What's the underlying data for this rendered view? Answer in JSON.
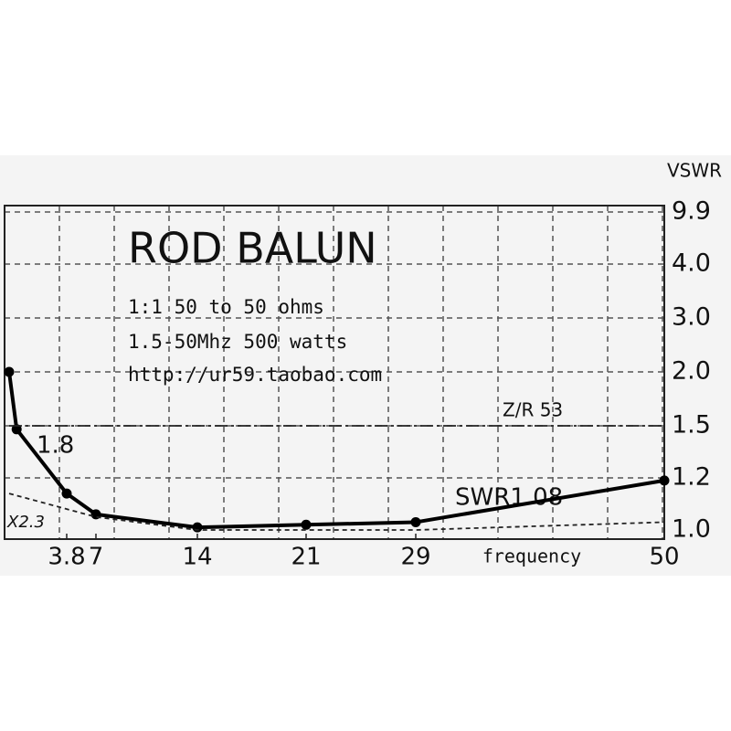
{
  "chart_data": {
    "type": "line",
    "title": "ROD BALUN",
    "subtitle": [
      "1:1 50 to 50 ohms",
      "1.5-50Mhz 500 watts",
      "http://ur59.taobao.com"
    ],
    "x_label": "frequency",
    "y_label": "VSWR",
    "xlim": [
      1.5,
      50
    ],
    "xticks": [
      3.8,
      7,
      14,
      21,
      29,
      50
    ],
    "ylim": [
      1,
      9.9
    ],
    "yticks": [
      {
        "value": 1,
        "label": "1.0"
      },
      1.2,
      1.5,
      {
        "value": 2,
        "label": "2.0"
      },
      {
        "value": 3,
        "label": "3.0"
      },
      {
        "value": 4,
        "label": "4.0"
      },
      9.9
    ],
    "grid": true,
    "series": [
      {
        "color": "#000000",
        "style": "solid",
        "markers": true,
        "x": [
          1.5,
          1.8,
          3.8,
          7,
          14,
          21,
          29,
          50
        ],
        "values": [
          2.0,
          1.48,
          1.14,
          1.06,
          1.01,
          1.02,
          1.03,
          1.19
        ]
      },
      {
        "color": "#222222",
        "style": "dashed",
        "markers": false,
        "x": [
          1.5,
          7,
          14,
          29,
          50
        ],
        "values": [
          1.14,
          1.05,
          1.0,
          1.0,
          1.03
        ]
      },
      {
        "color": "#222222",
        "style": "dashdot",
        "markers": false,
        "x": [
          1.5,
          50
        ],
        "values": [
          1.5,
          1.5
        ]
      }
    ],
    "annotations": [
      "1.8",
      "X2.3",
      "Z/R 53",
      "SWR1.08"
    ]
  }
}
